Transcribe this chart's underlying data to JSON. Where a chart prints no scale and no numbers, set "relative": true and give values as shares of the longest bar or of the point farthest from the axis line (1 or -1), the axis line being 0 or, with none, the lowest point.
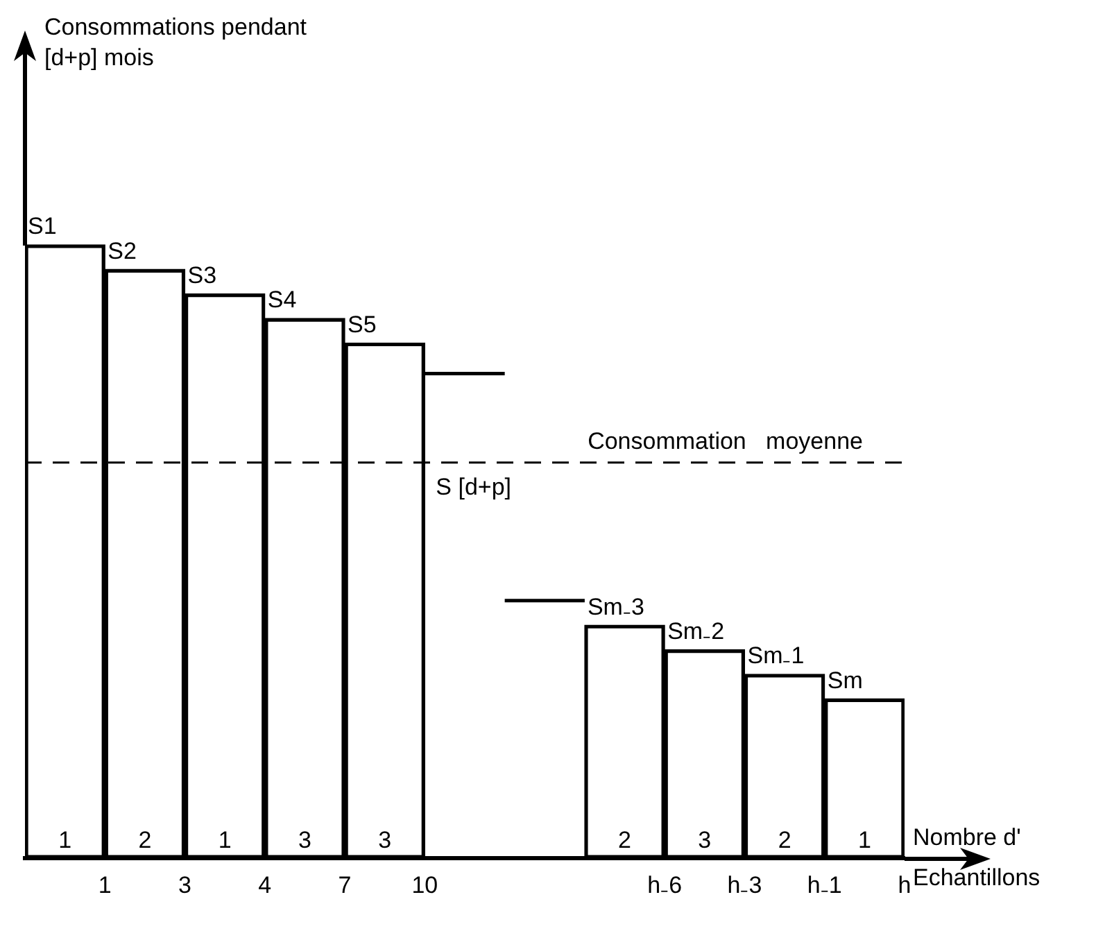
{
  "chart_data": {
    "type": "bar",
    "relative": true,
    "xlabel": "Nombre d' Echantillons",
    "categories": [
      "1",
      "3",
      "4",
      "7",
      "10",
      null,
      null,
      "h₋6",
      "h₋3",
      "h₋1",
      "h"
    ],
    "series": [
      {
        "color": "#000000",
        "values": [
          1,
          0.96,
          0.92,
          0.88,
          0.84,
          null,
          null,
          0.38,
          0.34,
          0.3,
          0.26
        ]
      },
      {
        "type": "line",
        "color": "#000000",
        "marker": "none",
        "values": [
          null,
          null,
          null,
          null,
          0.79,
          0.79,
          null,
          null,
          null,
          null,
          null
        ]
      },
      {
        "type": "line",
        "color": "#000000",
        "marker": "none",
        "values": [
          null,
          null,
          null,
          null,
          null,
          0.42,
          0.42,
          null,
          null,
          null,
          null
        ]
      }
    ],
    "ref_lines": [
      {
        "axis": "y",
        "value": 0.645,
        "label": "Consommation   moyenne",
        "color": "#000000",
        "line_style": "dashed"
      }
    ],
    "annotations": [
      "Consommations pendant [d+p] mois",
      "S [d+p]",
      {
        "text": "S1",
        "x": "1",
        "y": 1
      },
      {
        "text": "S2",
        "x": "3",
        "y": 0.96
      },
      {
        "text": "S3",
        "x": "4",
        "y": 0.92
      },
      {
        "text": "S4",
        "x": "7",
        "y": 0.88
      },
      {
        "text": "S5",
        "x": "10",
        "y": 0.84
      },
      {
        "text": "Sm₋3",
        "x": "h₋6",
        "y": 0.38
      },
      {
        "text": "Sm₋2",
        "x": "h₋3",
        "y": 0.34
      },
      {
        "text": "Sm₋1",
        "x": "h₋1",
        "y": 0.3
      },
      {
        "text": "Sm",
        "x": "h",
        "y": 0.26
      },
      {
        "text": "1",
        "x": "1",
        "y": 0
      },
      {
        "text": "2",
        "x": "3",
        "y": 0
      },
      {
        "text": "1",
        "x": "4",
        "y": 0
      },
      {
        "text": "3",
        "x": "7",
        "y": 0
      },
      {
        "text": "3",
        "x": "10",
        "y": 0
      },
      {
        "text": "2",
        "x": "h₋6",
        "y": 0
      },
      {
        "text": "3",
        "x": "h₋3",
        "y": 0
      },
      {
        "text": "2",
        "x": "h₋1",
        "y": 0
      },
      {
        "text": "1",
        "x": "h",
        "y": 0
      }
    ],
    "grid": false,
    "legend": false
  }
}
